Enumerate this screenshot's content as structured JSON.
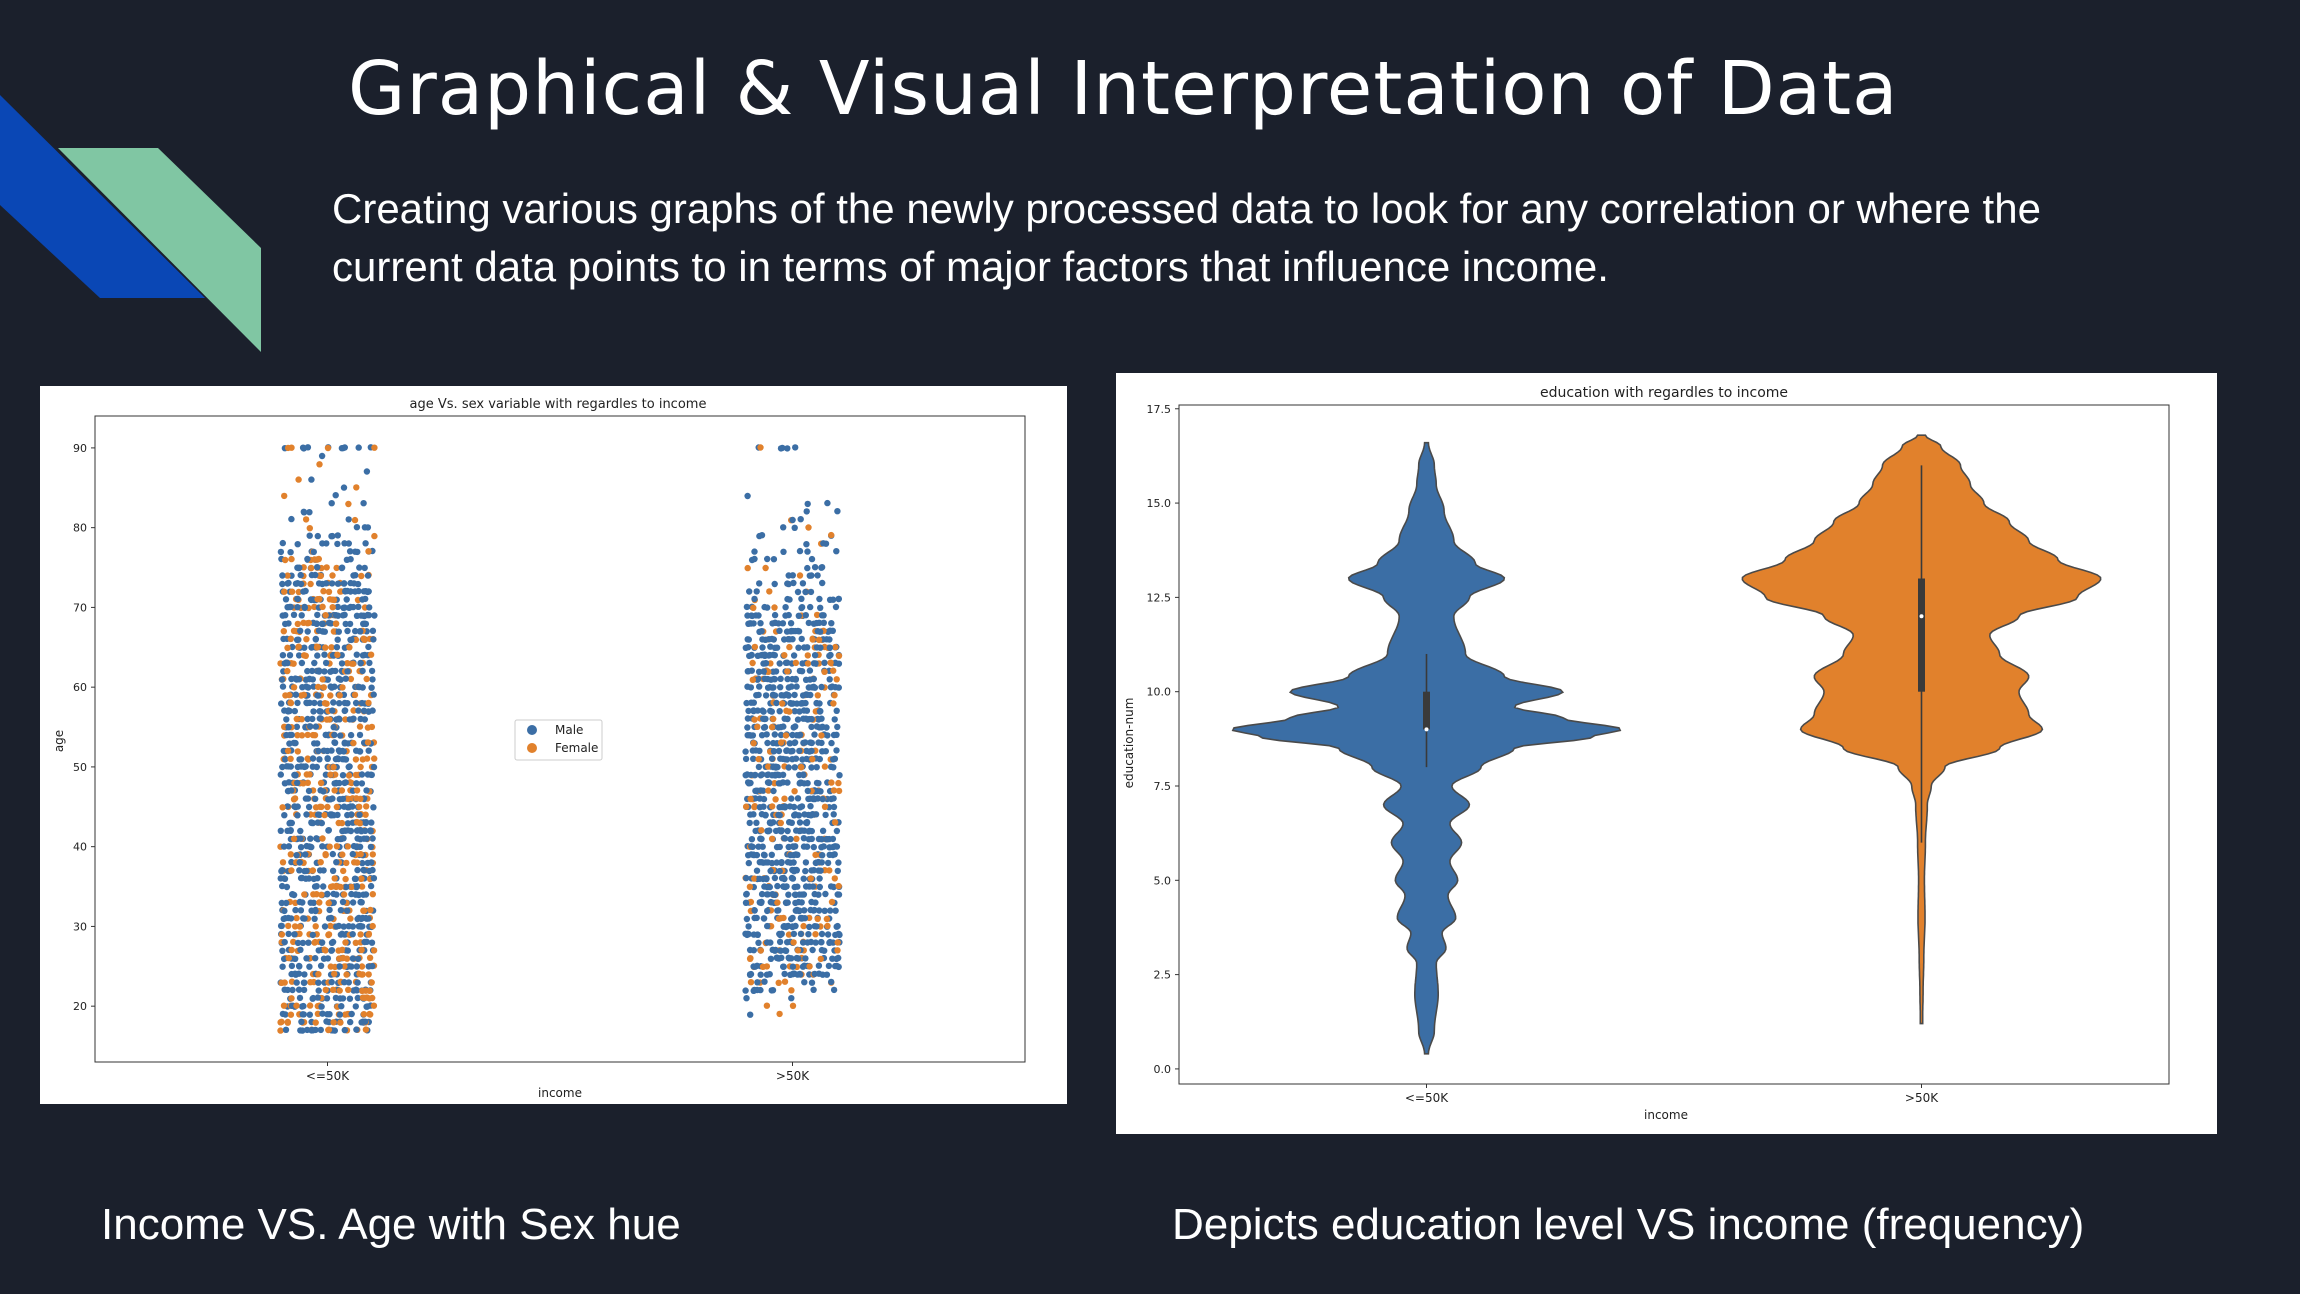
{
  "slide": {
    "title": "Graphical & Visual Interpretation of Data",
    "subtitle": "Creating various graphs of the newly processed data to look for any correlation or where the current data points to in terms of major factors that influence income.",
    "caption_left": "Income VS. Age with Sex hue",
    "caption_right": "Depicts education level VS income (frequency)"
  },
  "colors": {
    "background": "#1b202c",
    "deco_blue": "#0a47b5",
    "deco_green": "#80c6a3",
    "male": "#3b6ea5",
    "female": "#e1812c"
  },
  "chart_data": [
    {
      "type": "scatter",
      "subtype": "strip",
      "title": "age Vs. sex variable with regardles to income",
      "xlabel": "income",
      "ylabel": "age",
      "categories": [
        "<=50K",
        ">50K"
      ],
      "ylim": [
        13,
        94
      ],
      "yticks": [
        20,
        30,
        40,
        50,
        60,
        70,
        80,
        90
      ],
      "legend": {
        "placement": "center",
        "entries": [
          "Male",
          "Female"
        ]
      },
      "series": [
        {
          "name": "Male",
          "color": "#3b6ea5",
          "ranges": [
            {
              "category": "<=50K",
              "min": 17,
              "max": 90
            },
            {
              "category": ">50K",
              "min": 19,
              "max": 90
            }
          ]
        },
        {
          "name": "Female",
          "color": "#e1812c",
          "ranges": [
            {
              "category": "<=50K",
              "min": 17,
              "max": 90
            },
            {
              "category": ">50K",
              "min": 19,
              "max": 90
            }
          ]
        }
      ]
    },
    {
      "type": "violin",
      "title": "education with regardles to income",
      "xlabel": "income",
      "ylabel": "education-num",
      "categories": [
        "<=50K",
        ">50K"
      ],
      "ylim": [
        -0.4,
        17.6
      ],
      "yticks": [
        0.0,
        2.5,
        5.0,
        7.5,
        10.0,
        12.5,
        15.0,
        17.5
      ],
      "grid": false,
      "series": [
        {
          "category": "<=50K",
          "color": "#3b6ea5",
          "range": [
            0.4,
            16.6
          ],
          "quartiles": {
            "q1": 9,
            "median": 9,
            "q3": 10
          },
          "whiskers": [
            8,
            11
          ],
          "density": [
            [
              0.4,
              0.01
            ],
            [
              1,
              0.04
            ],
            [
              2,
              0.06
            ],
            [
              2.8,
              0.05
            ],
            [
              3.2,
              0.1
            ],
            [
              3.6,
              0.08
            ],
            [
              4,
              0.15
            ],
            [
              4.6,
              0.11
            ],
            [
              5,
              0.16
            ],
            [
              5.5,
              0.12
            ],
            [
              6,
              0.18
            ],
            [
              6.5,
              0.12
            ],
            [
              7,
              0.22
            ],
            [
              7.5,
              0.13
            ],
            [
              8,
              0.28
            ],
            [
              8.5,
              0.45
            ],
            [
              8.8,
              0.85
            ],
            [
              9,
              1.0
            ],
            [
              9.3,
              0.7
            ],
            [
              9.6,
              0.45
            ],
            [
              10,
              0.7
            ],
            [
              10.4,
              0.4
            ],
            [
              11,
              0.2
            ],
            [
              12,
              0.14
            ],
            [
              12.5,
              0.22
            ],
            [
              13,
              0.4
            ],
            [
              13.4,
              0.25
            ],
            [
              14,
              0.14
            ],
            [
              14.8,
              0.09
            ],
            [
              15.5,
              0.05
            ],
            [
              16,
              0.04
            ],
            [
              16.6,
              0.01
            ]
          ]
        },
        {
          "category": ">50K",
          "color": "#e1812c",
          "range": [
            1.2,
            16.8
          ],
          "quartiles": {
            "q1": 10,
            "median": 12,
            "q3": 13
          },
          "whiskers": [
            6,
            16
          ],
          "density": [
            [
              1.2,
              0.005
            ],
            [
              2,
              0.008
            ],
            [
              3,
              0.012
            ],
            [
              4,
              0.018
            ],
            [
              5,
              0.015
            ],
            [
              6,
              0.02
            ],
            [
              7,
              0.03
            ],
            [
              7.5,
              0.05
            ],
            [
              8,
              0.12
            ],
            [
              8.5,
              0.4
            ],
            [
              9,
              0.62
            ],
            [
              9.4,
              0.55
            ],
            [
              10,
              0.5
            ],
            [
              10.4,
              0.55
            ],
            [
              11,
              0.4
            ],
            [
              11.5,
              0.35
            ],
            [
              12,
              0.5
            ],
            [
              12.5,
              0.8
            ],
            [
              13,
              0.92
            ],
            [
              13.5,
              0.7
            ],
            [
              14,
              0.55
            ],
            [
              14.5,
              0.45
            ],
            [
              15,
              0.32
            ],
            [
              15.5,
              0.25
            ],
            [
              16,
              0.2
            ],
            [
              16.5,
              0.1
            ],
            [
              16.8,
              0.02
            ]
          ]
        }
      ]
    }
  ]
}
